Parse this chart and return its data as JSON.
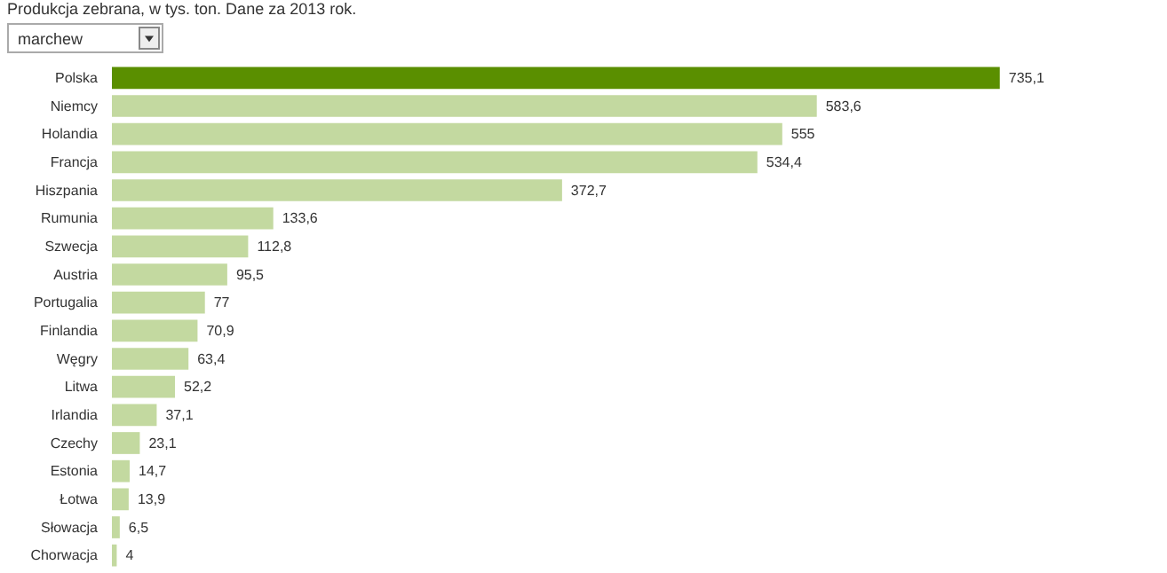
{
  "chart_data": {
    "type": "bar",
    "orientation": "horizontal",
    "title": "Produkcja zebrana, w tys. ton. Dane za 2013 rok.",
    "annotations": [
      "marchew"
    ],
    "categories": [
      "Polska",
      "Niemcy",
      "Holandia",
      "Francja",
      "Hiszpania",
      "Rumunia",
      "Szwecja",
      "Austria",
      "Portugalia",
      "Finlandia",
      "Węgry",
      "Litwa",
      "Irlandia",
      "Czechy",
      "Estonia",
      "Łotwa",
      "Słowacja",
      "Chorwacja"
    ],
    "values": [
      735.1,
      583.6,
      555,
      534.4,
      372.7,
      133.6,
      112.8,
      95.5,
      77,
      70.9,
      63.4,
      52.2,
      37.1,
      23.1,
      14.7,
      13.9,
      6.5,
      4
    ],
    "value_labels": [
      "735,1",
      "583,6",
      "555",
      "534,4",
      "372,7",
      "133,6",
      "112,8",
      "95,5",
      "77",
      "70,9",
      "63,4",
      "52,2",
      "37,1",
      "23,1",
      "14,7",
      "13,9",
      "6,5",
      "4"
    ],
    "colors": [
      "#5a8f00",
      "#c3d9a0",
      "#c3d9a0",
      "#c3d9a0",
      "#c3d9a0",
      "#c3d9a0",
      "#c3d9a0",
      "#c3d9a0",
      "#c3d9a0",
      "#c3d9a0",
      "#c3d9a0",
      "#c3d9a0",
      "#c3d9a0",
      "#c3d9a0",
      "#c3d9a0",
      "#c3d9a0",
      "#c3d9a0",
      "#c3d9a0"
    ]
  }
}
